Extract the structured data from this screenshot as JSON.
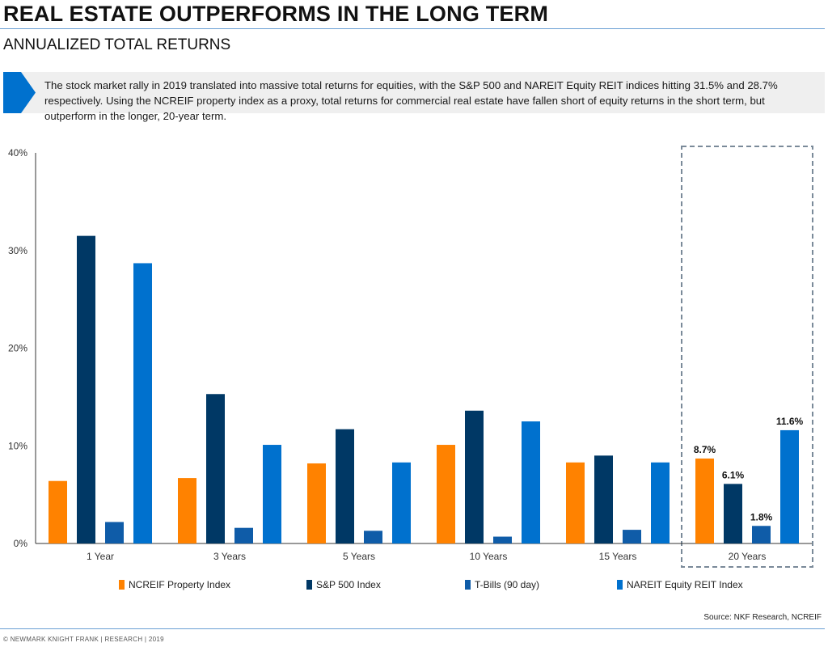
{
  "header": {
    "title": "REAL ESTATE OUTPERFORMS IN THE LONG TERM",
    "subtitle": "ANNUALIZED TOTAL RETURNS"
  },
  "callout": {
    "text": "The stock market rally in 2019 translated into massive total returns for equities, with the S&P 500 and NAREIT Equity REIT indices hitting 31.5% and 28.7% respectively. Using the NCREIF property index as a proxy, total returns for commercial real estate have fallen short of equity returns in the short term, but outperform in the longer, 20-year term.",
    "accent_color": "#0071ce"
  },
  "chart_data": {
    "type": "bar",
    "categories": [
      "1 Year",
      "3 Years",
      "5 Years",
      "10 Years",
      "15 Years",
      "20 Years"
    ],
    "series": [
      {
        "name": "NCREIF Property Index",
        "color": "#ff8200",
        "values": [
          6.4,
          6.7,
          8.2,
          10.1,
          8.3,
          8.7
        ]
      },
      {
        "name": "S&P 500 Index",
        "color": "#003865",
        "values": [
          31.5,
          15.3,
          11.7,
          13.6,
          9.0,
          6.1
        ]
      },
      {
        "name": "T-Bills (90 day)",
        "color": "#0f5ca8",
        "values": [
          2.2,
          1.6,
          1.3,
          0.7,
          1.4,
          1.8
        ]
      },
      {
        "name": "NAREIT Equity REIT Index",
        "color": "#0071ce",
        "values": [
          28.7,
          10.1,
          8.3,
          12.5,
          8.3,
          11.6
        ]
      }
    ],
    "data_labels": [
      {
        "category": "20 Years",
        "series": "NCREIF Property Index",
        "text": "8.7%"
      },
      {
        "category": "20 Years",
        "series": "S&P 500 Index",
        "text": "6.1%"
      },
      {
        "category": "20 Years",
        "series": "T-Bills (90 day)",
        "text": "1.8%"
      },
      {
        "category": "20 Years",
        "series": "NAREIT Equity REIT Index",
        "text": "11.6%"
      }
    ],
    "highlight_category": "20 Years",
    "y_ticks": [
      "0%",
      "10%",
      "20%",
      "30%",
      "40%"
    ],
    "ylim": [
      0,
      40
    ],
    "grid": false,
    "legend_position": "bottom"
  },
  "source": "Source: NKF Research,  NCREIF",
  "footer": "© NEWMARK KNIGHT FRANK  |  RESEARCH  |  2019"
}
